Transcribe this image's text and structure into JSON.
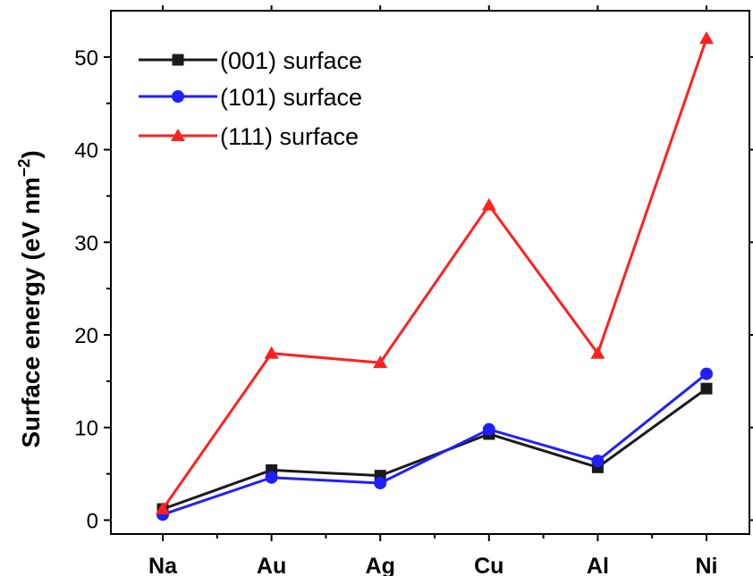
{
  "chart_data": {
    "type": "line",
    "categories": [
      "Na",
      "Au",
      "Ag",
      "Cu",
      "Al",
      "Ni"
    ],
    "ylabel": "Surface energy (eV nm",
    "ylabel_sup": "−2",
    "ylabel_close": ")",
    "xlabel": "",
    "ylim": [
      -1.5,
      55
    ],
    "yticks": [
      0,
      10,
      20,
      30,
      40,
      50
    ],
    "ytick_labels": [
      "0",
      "10",
      "20",
      "30",
      "40",
      "50"
    ],
    "y_minor_step": 5,
    "grid": false,
    "legend_position": "top-left",
    "series": [
      {
        "name": "(001) surface",
        "color": "#1a1a1a",
        "marker": "square",
        "values": [
          1.2,
          5.4,
          4.8,
          9.3,
          5.7,
          14.2
        ]
      },
      {
        "name": "(101) surface",
        "color": "#1f1fff",
        "marker": "circle",
        "values": [
          0.6,
          4.6,
          4.0,
          9.8,
          6.4,
          15.8
        ]
      },
      {
        "name": "(111) surface",
        "color": "#ff2020",
        "marker": "triangle",
        "values": [
          1.2,
          18.0,
          17.0,
          34.0,
          18.0,
          52.0
        ]
      }
    ]
  }
}
